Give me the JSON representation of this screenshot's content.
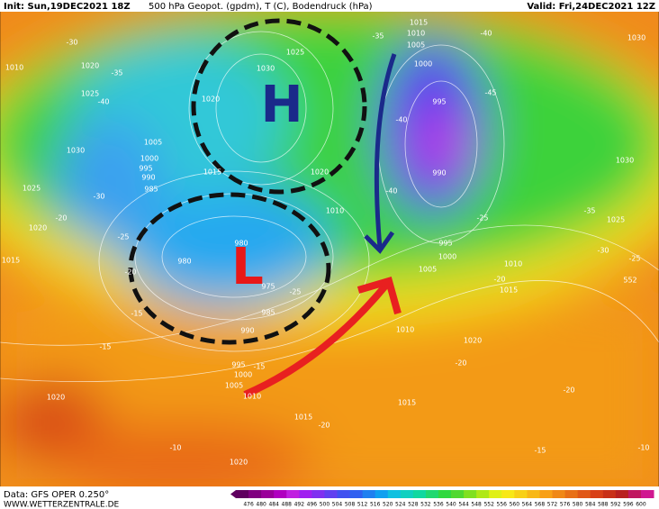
{
  "header": {
    "init": "Init: Sun,19DEC2021 18Z",
    "title": "500 hPa Geopot. (gpdm), T (C), Bodendruck (hPa)",
    "valid": "Valid: Fri,24DEC2021 12Z"
  },
  "footer": {
    "data": "Data: GFS OPER 0.250°",
    "site": "WWW.WETTERZENTRALE.DE"
  },
  "colorbar": {
    "labels": [
      "476",
      "480",
      "484",
      "488",
      "492",
      "496",
      "500",
      "504",
      "508",
      "512",
      "516",
      "520",
      "524",
      "528",
      "532",
      "536",
      "540",
      "544",
      "548",
      "552",
      "556",
      "560",
      "564",
      "568",
      "572",
      "576",
      "580",
      "584",
      "588",
      "592",
      "596",
      "600"
    ]
  },
  "map": {
    "high": "H",
    "low": "L",
    "pressure_labels": [
      "1010",
      "1020",
      "1025",
      "1030",
      "1025",
      "1020",
      "1015",
      "1005",
      "1000",
      "995",
      "990",
      "985",
      "980",
      "975",
      "985",
      "990",
      "980",
      "1020",
      "1030",
      "1025",
      "1015",
      "1020",
      "1010",
      "1015",
      "1010",
      "1005",
      "1000",
      "995",
      "990",
      "995",
      "1000",
      "1005",
      "1010",
      "1015",
      "1010",
      "1020",
      "1015",
      "1015",
      "1020",
      "1020",
      "995",
      "1000",
      "1005",
      "1010",
      "1030",
      "1030",
      "1025",
      "552"
    ],
    "temperature_labels": [
      "-30",
      "-35",
      "-40",
      "-30",
      "-25",
      "-20",
      "-20",
      "-15",
      "-15",
      "-25",
      "-15",
      "-40",
      "-25",
      "-35",
      "-30",
      "-25",
      "-20",
      "-20",
      "-20",
      "-15",
      "-10",
      "-10",
      "-20",
      "-45",
      "-40",
      "-35",
      "-40"
    ]
  }
}
